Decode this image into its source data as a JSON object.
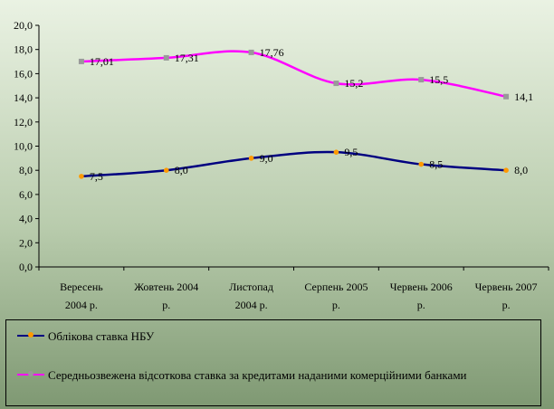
{
  "chart_data": {
    "type": "line",
    "categories": [
      [
        "Вересень",
        "2004 р."
      ],
      [
        "Жовтень 2004",
        "р."
      ],
      [
        "Листопад",
        "2004 р."
      ],
      [
        "Серпень  2005",
        "р."
      ],
      [
        "Червень  2006",
        "р."
      ],
      [
        "Червень  2007",
        "р."
      ]
    ],
    "ylim": [
      0,
      20
    ],
    "yticks": [
      "0,0",
      "2,0",
      "4,0",
      "6,0",
      "8,0",
      "10,0",
      "12,0",
      "14,0",
      "16,0",
      "18,0",
      "20,0"
    ],
    "grid": false,
    "legend_position": "bottom",
    "series": [
      {
        "name": "Облікова ставка НБУ",
        "values": [
          7.5,
          8.0,
          9.0,
          9.5,
          8.5,
          8.0
        ],
        "labels": [
          "7,5",
          "8,0",
          "9,0",
          "9,5",
          "8,5",
          "8,0"
        ],
        "color": "#000080",
        "marker_color": "#ff9900"
      },
      {
        "name": "Середньозвежена відсоткова ставка за кредитами наданими комерційними банками",
        "values": [
          17.01,
          17.31,
          17.76,
          15.2,
          15.5,
          14.1
        ],
        "labels": [
          "17,01",
          "17,31",
          "17,76",
          "15,2",
          "15,5",
          "14,1"
        ],
        "color": "#ff00ff",
        "marker_color": "#999999"
      }
    ]
  }
}
